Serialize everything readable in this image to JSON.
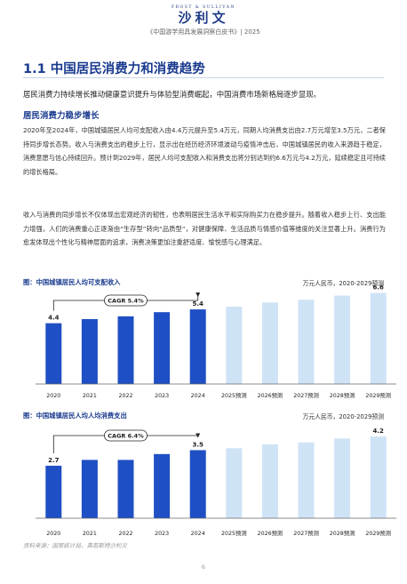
{
  "header": {
    "brand_en": "FROST & SULLIVAN",
    "brand_cn": "沙利文",
    "doc_title": "《中国游学用具发展洞察白皮书》| 2025"
  },
  "section": {
    "title": "1.1 中国居民消费力和消费趋势",
    "intro": "居民消费力持续增长推动健康意识提升与体验型消费崛起，中国消费市场新格局逐步显现。",
    "subtitle": "居民消费力稳步增长",
    "para1": "2020年至2024年，中国城镇居民人均可支配收入由4.4万元提升至5.4万元，同期人均消费支出由2.7万元增至3.5万元，二者保持同步增长态势。收入与消费支出的稳步上行，显示出在经历经济环境波动与疫情冲击后，中国城镇居民的收入来源趋于稳定，消费意愿与信心持续回升。预计到2029年，居民人均可支配收入和消费支出将分别达到约6.6万元与4.2万元，延续稳定且可持续的增长格局。",
    "para2": "收入与消费的同步增长不仅体现出宏观经济的韧性，也表明居民生活水平和实际购买力在稳步提升。随着收入稳步上行、支出能力增强，人们的消费重心正逐渐由“生存型”转向“品质型”，对健康保障、生活品质与情感价值等维度的关注显著上升。消费行为愈发体现出个性化与精神层面的追求，消费决策更加注重舒适度、愉悦感与心理满足。"
  },
  "chart_data": [
    {
      "type": "bar",
      "title": "图：中国城镇居民人均可支配收入",
      "unit": "万元人民币，2020-2029预测",
      "categories": [
        "2020",
        "2021",
        "2022",
        "2023",
        "2024",
        "2025预测",
        "2026预测",
        "2027预测",
        "2028预测",
        "2029预测"
      ],
      "values": [
        4.4,
        4.7,
        4.9,
        5.2,
        5.4,
        5.6,
        5.9,
        6.1,
        6.4,
        6.6
      ],
      "data_labels": {
        "0": "4.4",
        "4": "5.4",
        "9": "6.6"
      },
      "cagr_label": "CAGR 5.4%",
      "colors": {
        "actual": "#1f4fc4",
        "forecast": "#cfe3f7"
      },
      "ylim": [
        0,
        7.4
      ]
    },
    {
      "type": "bar",
      "title": "图：中国城镇居民人均人均消费支出",
      "unit": "万元人民币，2020-2029预测",
      "categories": [
        "2020",
        "2021",
        "2022",
        "2023",
        "2024",
        "2025预测",
        "2026预测",
        "2027预测",
        "2028预测",
        "2029预测"
      ],
      "values": [
        2.7,
        3.0,
        3.0,
        3.3,
        3.5,
        3.6,
        3.8,
        3.9,
        4.1,
        4.2
      ],
      "data_labels": {
        "0": "2.7",
        "4": "3.5",
        "9": "4.2"
      },
      "cagr_label": "CAGR 6.4%",
      "colors": {
        "actual": "#1f4fc4",
        "forecast": "#cfe3f7"
      },
      "ylim": [
        0,
        4.8
      ]
    }
  ],
  "footer": {
    "source": "资料来源：国家统计局，弗若斯特沙利文",
    "page": "6"
  }
}
